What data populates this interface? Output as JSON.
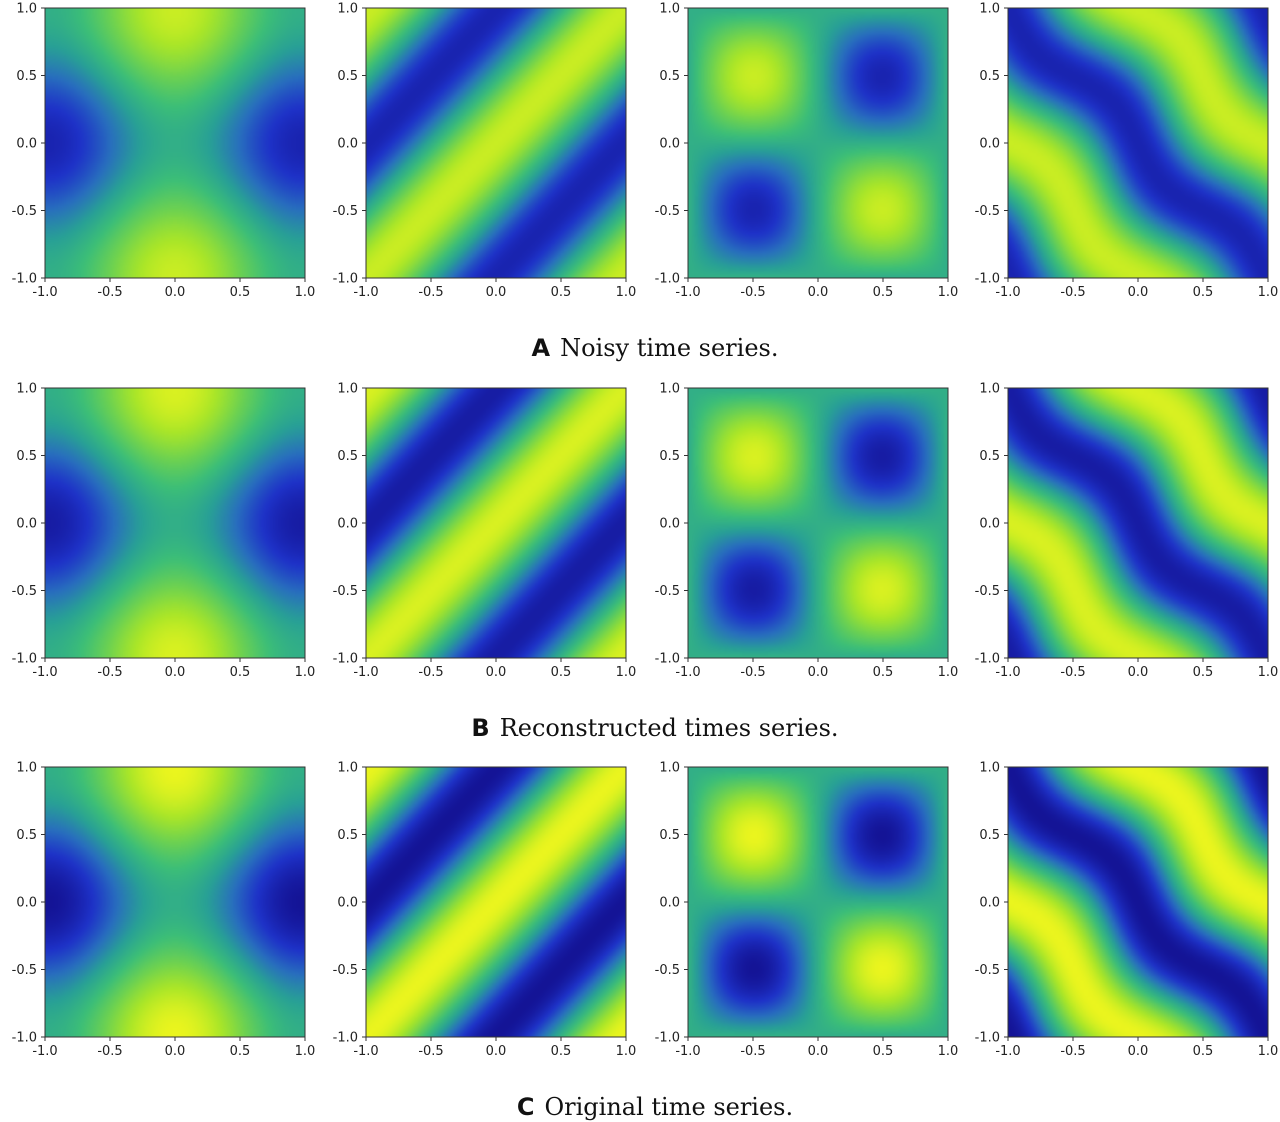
{
  "chart_data": {
    "type": "heatmap",
    "colormap": "viridis",
    "ticks": [
      "-1.0",
      "-0.5",
      "0.0",
      "0.5",
      "1.0"
    ],
    "xlim": [
      -1,
      1
    ],
    "ylim": [
      -1,
      1
    ],
    "grid": false,
    "field_functions": [
      "cos(pi*x) - cos(pi*y)",
      "cos(pi*(x - y))",
      "-sin(pi*x)*sin(pi*y)",
      "-cos(pi*(x + y)) with waviness"
    ],
    "rows": [
      {
        "letter": "A",
        "caption": "Noisy time series.",
        "intensity": 0.85
      },
      {
        "letter": "B",
        "caption": "Reconstructed times series.",
        "intensity": 0.92
      },
      {
        "letter": "C",
        "caption": "Original time series.",
        "intensity": 1.0
      }
    ]
  }
}
